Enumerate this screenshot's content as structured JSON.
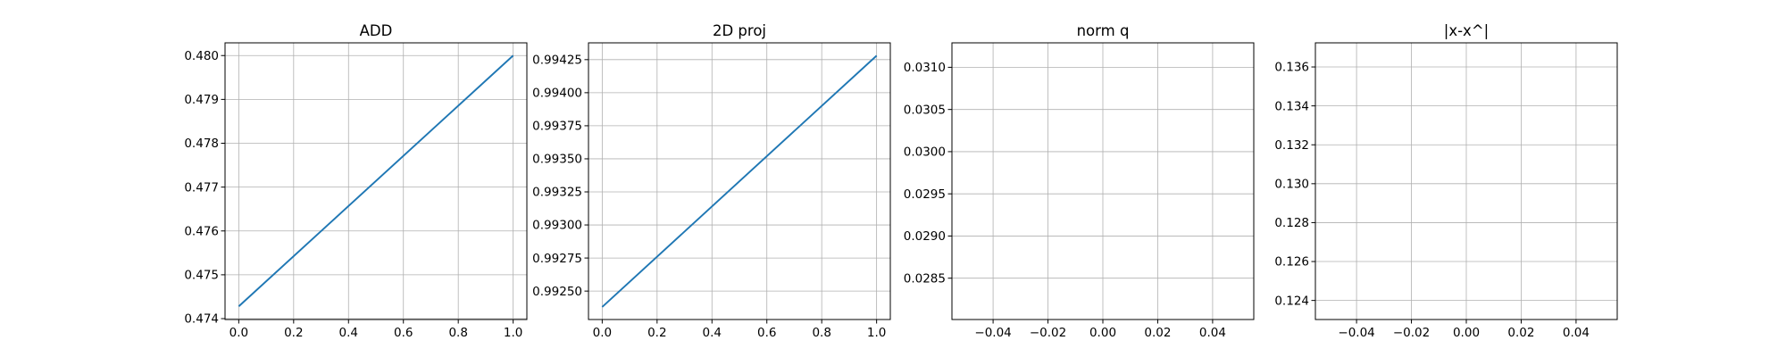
{
  "chart_data": [
    {
      "type": "line",
      "title": "ADD",
      "xlabel": "",
      "ylabel": "",
      "grid": true,
      "xlim": [
        -0.05,
        1.05
      ],
      "ylim": [
        0.47398,
        0.48029
      ],
      "xticks": [
        0.0,
        0.2,
        0.4,
        0.6,
        0.8,
        1.0
      ],
      "xtick_labels": [
        "0.0",
        "0.2",
        "0.4",
        "0.6",
        "0.8",
        "1.0"
      ],
      "yticks": [
        0.474,
        0.475,
        0.476,
        0.477,
        0.478,
        0.479,
        0.48
      ],
      "ytick_labels": [
        "0.474",
        "0.475",
        "0.476",
        "0.477",
        "0.478",
        "0.479",
        "0.480"
      ],
      "series": [
        {
          "color": "#1f77b4",
          "x": [
            0.0,
            1.0
          ],
          "y": [
            0.47428,
            0.48
          ]
        }
      ]
    },
    {
      "type": "line",
      "title": "2D proj",
      "xlabel": "",
      "ylabel": "",
      "grid": true,
      "xlim": [
        -0.05,
        1.05
      ],
      "ylim": [
        0.992285,
        0.994377
      ],
      "xticks": [
        0.0,
        0.2,
        0.4,
        0.6,
        0.8,
        1.0
      ],
      "xtick_labels": [
        "0.0",
        "0.2",
        "0.4",
        "0.6",
        "0.8",
        "1.0"
      ],
      "yticks": [
        0.9925,
        0.99275,
        0.993,
        0.99325,
        0.9935,
        0.99375,
        0.994,
        0.99425
      ],
      "ytick_labels": [
        "0.99250",
        "0.99275",
        "0.99300",
        "0.99325",
        "0.99350",
        "0.99375",
        "0.99400",
        "0.99425"
      ],
      "series": [
        {
          "color": "#1f77b4",
          "x": [
            0.0,
            1.0
          ],
          "y": [
            0.99238,
            0.99428
          ]
        }
      ]
    },
    {
      "type": "line",
      "title": "norm q",
      "xlabel": "",
      "ylabel": "",
      "grid": true,
      "xlim": [
        -0.055,
        0.055
      ],
      "ylim": [
        0.02801,
        0.03129
      ],
      "xticks": [
        -0.04,
        -0.02,
        0.0,
        0.02,
        0.04
      ],
      "xtick_labels": [
        "−0.04",
        "−0.02",
        "0.00",
        "0.02",
        "0.04"
      ],
      "yticks": [
        0.0285,
        0.029,
        0.0295,
        0.03,
        0.0305,
        0.031
      ],
      "ytick_labels": [
        "0.0285",
        "0.0290",
        "0.0295",
        "0.0300",
        "0.0305",
        "0.0310"
      ],
      "series": []
    },
    {
      "type": "line",
      "title": "|x-x^|",
      "xlabel": "",
      "ylabel": "",
      "grid": true,
      "xlim": [
        -0.055,
        0.055
      ],
      "ylim": [
        0.12302,
        0.13724
      ],
      "xticks": [
        -0.04,
        -0.02,
        0.0,
        0.02,
        0.04
      ],
      "xtick_labels": [
        "−0.04",
        "−0.02",
        "0.00",
        "0.02",
        "0.04"
      ],
      "yticks": [
        0.124,
        0.126,
        0.128,
        0.13,
        0.132,
        0.134,
        0.136
      ],
      "ytick_labels": [
        "0.124",
        "0.126",
        "0.128",
        "0.130",
        "0.132",
        "0.134",
        "0.136"
      ],
      "series": []
    }
  ]
}
